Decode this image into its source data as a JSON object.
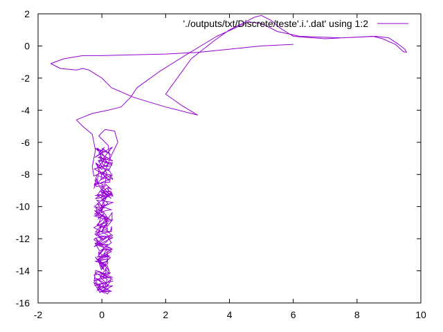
{
  "chart_data": {
    "type": "line",
    "title": "",
    "xlabel": "",
    "ylabel": "",
    "xlim": [
      -2,
      10
    ],
    "ylim": [
      -16,
      2
    ],
    "xticks": [
      -2,
      0,
      2,
      4,
      6,
      8,
      10
    ],
    "yticks": [
      -16,
      -14,
      -12,
      -10,
      -8,
      -6,
      -4,
      -2,
      0,
      2
    ],
    "grid": false,
    "legend": {
      "position": "top-right"
    },
    "series": [
      {
        "name": "'./outputs/txt/Discrete/teste'.i.'.dat' using 1:2",
        "color": "#9400d3",
        "points": [
          [
            6.0,
            0.1
          ],
          [
            5.0,
            0.0
          ],
          [
            4.0,
            -0.2
          ],
          [
            3.0,
            -0.4
          ],
          [
            2.0,
            -0.5
          ],
          [
            1.0,
            -0.55
          ],
          [
            0.0,
            -0.6
          ],
          [
            -0.6,
            -0.6
          ],
          [
            -1.2,
            -0.8
          ],
          [
            -1.6,
            -1.1
          ],
          [
            -1.3,
            -1.4
          ],
          [
            -0.8,
            -1.5
          ],
          [
            -0.6,
            -1.4
          ],
          [
            -0.4,
            -1.5
          ],
          [
            0.0,
            -2.0
          ],
          [
            0.3,
            -2.6
          ],
          [
            1.0,
            -3.2
          ],
          [
            2.0,
            -3.8
          ],
          [
            2.8,
            -4.2
          ],
          [
            3.0,
            -4.3
          ],
          [
            2.5,
            -3.7
          ],
          [
            2.0,
            -3.0
          ],
          [
            2.8,
            -0.8
          ],
          [
            3.5,
            0.3
          ],
          [
            4.0,
            1.0
          ],
          [
            4.8,
            1.8
          ],
          [
            5.0,
            1.9
          ],
          [
            5.3,
            1.6
          ],
          [
            5.6,
            1.1
          ],
          [
            6.0,
            0.6
          ],
          [
            7.0,
            0.45
          ],
          [
            8.0,
            0.55
          ],
          [
            8.6,
            0.6
          ],
          [
            9.0,
            0.5
          ],
          [
            9.3,
            0.1
          ],
          [
            9.5,
            -0.2
          ],
          [
            9.55,
            -0.4
          ],
          [
            9.45,
            -0.35
          ],
          [
            9.2,
            0.1
          ],
          [
            8.8,
            0.45
          ],
          [
            8.5,
            0.6
          ],
          [
            7.5,
            0.5
          ],
          [
            6.2,
            0.6
          ],
          [
            5.5,
            0.9
          ],
          [
            5.0,
            1.4
          ],
          [
            4.6,
            1.5
          ],
          [
            3.6,
            0.6
          ],
          [
            2.6,
            -0.6
          ],
          [
            1.8,
            -1.6
          ],
          [
            1.1,
            -2.6
          ],
          [
            0.9,
            -3.2
          ],
          [
            0.6,
            -3.8
          ],
          [
            0.2,
            -4.0
          ],
          [
            -0.3,
            -4.2
          ],
          [
            -0.8,
            -4.6
          ],
          [
            -0.6,
            -5.0
          ],
          [
            -0.3,
            -5.5
          ],
          [
            -0.2,
            -6.5
          ],
          [
            -0.3,
            -7.5
          ],
          [
            -0.25,
            -8.1
          ],
          [
            0.1,
            -7.8
          ],
          [
            0.3,
            -6.8
          ],
          [
            0.5,
            -6.0
          ],
          [
            0.4,
            -5.3
          ],
          [
            0.1,
            -5.2
          ],
          [
            -0.1,
            -5.6
          ],
          [
            0.2,
            -6.2
          ],
          [
            0.25,
            -7.0
          ],
          [
            -0.1,
            -7.2
          ],
          [
            0.15,
            -7.9
          ],
          [
            0.1,
            -8.6
          ],
          [
            -0.15,
            -9.3
          ],
          [
            0.2,
            -9.8
          ],
          [
            -0.2,
            -10.3
          ],
          [
            0.25,
            -10.8
          ],
          [
            -0.25,
            -11.3
          ],
          [
            0.2,
            -11.8
          ],
          [
            -0.2,
            -12.3
          ],
          [
            0.3,
            -12.8
          ],
          [
            -0.15,
            -13.3
          ],
          [
            0.15,
            -13.8
          ],
          [
            -0.05,
            -14.4
          ],
          [
            0.2,
            -14.9
          ],
          [
            0.0,
            -15.3
          ],
          [
            0.1,
            -15.4
          ]
        ],
        "oscillation_segment": {
          "x_range": [
            -0.25,
            0.35
          ],
          "y_range": [
            -15.4,
            -6.3
          ]
        }
      }
    ]
  }
}
